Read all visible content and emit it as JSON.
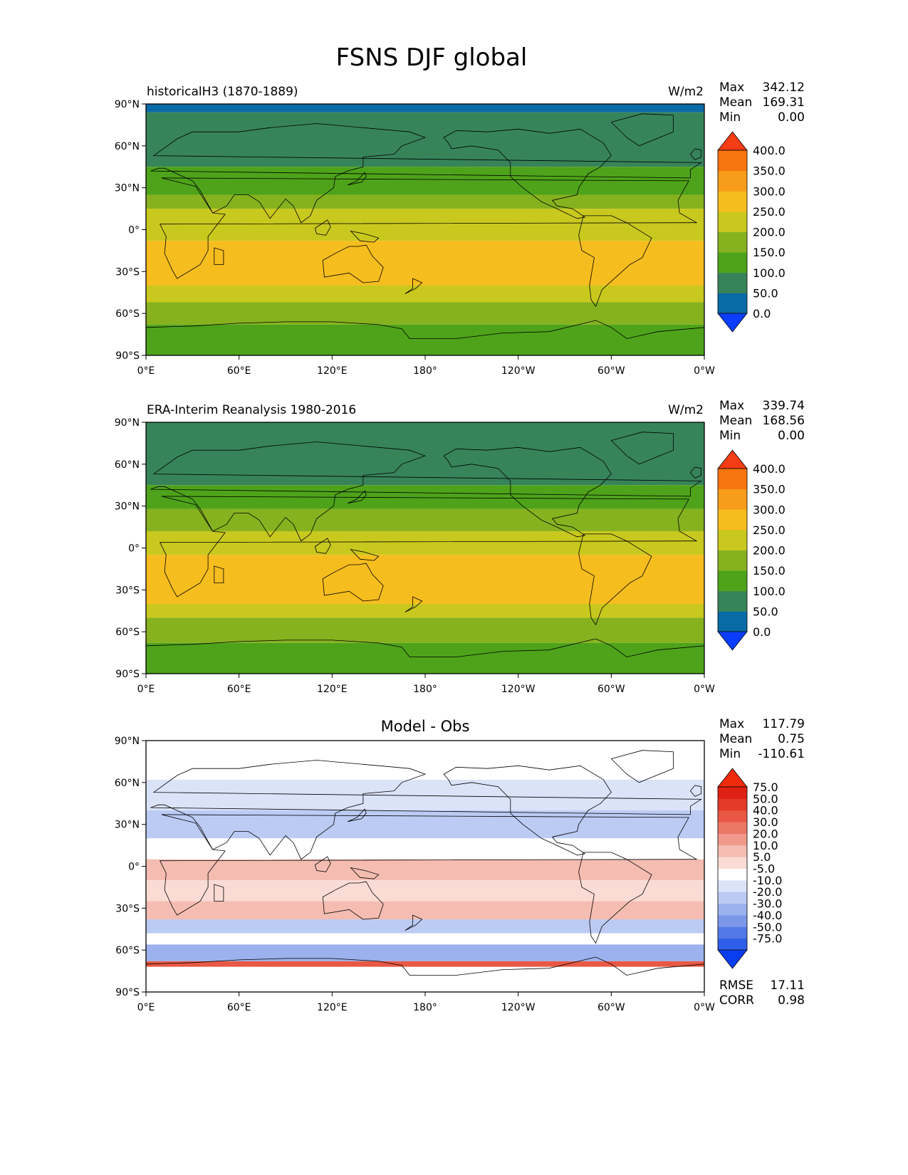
{
  "title": "FSNS DJF global",
  "colors": {
    "abs_levels": [
      "#0a3dff",
      "#0a6aa6",
      "#37845a",
      "#4ea31a",
      "#86b21f",
      "#c9c81e",
      "#f6bd1e",
      "#f79d1b",
      "#f7750f",
      "#f43c15"
    ],
    "diff_levels": [
      "#0b3df0",
      "#2f5ee8",
      "#5279e6",
      "#7a97ea",
      "#9cb2ee",
      "#bccbf4",
      "#dbe3f9",
      "#ffffff",
      "#fadcd5",
      "#f5bdb2",
      "#f19a8c",
      "#eb7865",
      "#e85844",
      "#e33a2a",
      "#de2114",
      "#f02a0c"
    ],
    "land_outline": "#000000",
    "frame": "#000000"
  },
  "chart_data": [
    {
      "type": "heatmap",
      "panel": "top",
      "left_title": "historicalH3 (1870-1889)",
      "center_title": "",
      "units": "W/m2",
      "stats": {
        "labels": [
          "Max",
          "Mean",
          "Min"
        ],
        "values": [
          "342.12",
          "169.31",
          "0.00"
        ]
      },
      "colorbar_ticks": [
        "400.0",
        "350.0",
        "300.0",
        "250.0",
        "200.0",
        "150.0",
        "100.0",
        "50.0",
        "0.0"
      ],
      "colorbar_extend": "both",
      "x_ticks": [
        "0°E",
        "60°E",
        "120°E",
        "180°",
        "120°W",
        "60°W",
        "0°W"
      ],
      "y_ticks": [
        "90°N",
        "60°N",
        "30°N",
        "0°",
        "30°S",
        "60°S",
        "90°S"
      ],
      "xlim": [
        0,
        360
      ],
      "ylim": [
        -90,
        90
      ],
      "lat_band_values": [
        {
          "lat": [
            84,
            90
          ],
          "value": 0
        },
        {
          "lat": [
            45,
            84
          ],
          "value": 75
        },
        {
          "lat": [
            25,
            45
          ],
          "value": 125
        },
        {
          "lat": [
            15,
            25
          ],
          "value": 175
        },
        {
          "lat": [
            -8,
            15
          ],
          "value": 225
        },
        {
          "lat": [
            -40,
            -8
          ],
          "value": 275
        },
        {
          "lat": [
            -52,
            -40
          ],
          "value": 225
        },
        {
          "lat": [
            -68,
            -52
          ],
          "value": 175
        },
        {
          "lat": [
            -90,
            -68
          ],
          "value": 125
        }
      ]
    },
    {
      "type": "heatmap",
      "panel": "middle",
      "left_title": "ERA-Interim Reanalysis 1980-2016",
      "center_title": "",
      "units": "W/m2",
      "stats": {
        "labels": [
          "Max",
          "Mean",
          "Min"
        ],
        "values": [
          "339.74",
          "168.56",
          "0.00"
        ]
      },
      "colorbar_ticks": [
        "400.0",
        "350.0",
        "300.0",
        "250.0",
        "200.0",
        "150.0",
        "100.0",
        "50.0",
        "0.0"
      ],
      "colorbar_extend": "both",
      "x_ticks": [
        "0°E",
        "60°E",
        "120°E",
        "180°",
        "120°W",
        "60°W",
        "0°W"
      ],
      "y_ticks": [
        "90°N",
        "60°N",
        "30°N",
        "0°",
        "30°S",
        "60°S",
        "90°S"
      ],
      "xlim": [
        0,
        360
      ],
      "ylim": [
        -90,
        90
      ],
      "lat_band_values": [
        {
          "lat": [
            45,
            90
          ],
          "value": 75
        },
        {
          "lat": [
            28,
            45
          ],
          "value": 125
        },
        {
          "lat": [
            12,
            28
          ],
          "value": 175
        },
        {
          "lat": [
            -5,
            12
          ],
          "value": 225
        },
        {
          "lat": [
            -40,
            -5
          ],
          "value": 275
        },
        {
          "lat": [
            -50,
            -40
          ],
          "value": 225
        },
        {
          "lat": [
            -68,
            -50
          ],
          "value": 175
        },
        {
          "lat": [
            -90,
            -68
          ],
          "value": 125
        }
      ]
    },
    {
      "type": "heatmap",
      "panel": "bottom",
      "left_title": "",
      "center_title": "Model - Obs",
      "units": "",
      "stats": {
        "labels": [
          "Max",
          "Mean",
          "Min"
        ],
        "values": [
          "117.79",
          "0.75",
          "-110.61"
        ]
      },
      "colorbar_ticks": [
        "75.0",
        "50.0",
        "40.0",
        "30.0",
        "20.0",
        "10.0",
        "5.0",
        "-5.0",
        "-10.0",
        "-20.0",
        "-30.0",
        "-40.0",
        "-50.0",
        "-75.0"
      ],
      "colorbar_extend": "both",
      "x_ticks": [
        "0°E",
        "60°E",
        "120°E",
        "180°",
        "120°W",
        "60°W",
        "0°W"
      ],
      "y_ticks": [
        "90°N",
        "60°N",
        "30°N",
        "0°",
        "30°S",
        "60°S",
        "90°S"
      ],
      "xlim": [
        0,
        360
      ],
      "ylim": [
        -90,
        90
      ],
      "extra_stats": {
        "labels": [
          "RMSE",
          "CORR"
        ],
        "values": [
          "17.11",
          "0.98"
        ]
      },
      "lat_band_values": [
        {
          "lat": [
            62,
            90
          ],
          "value": 0
        },
        {
          "lat": [
            40,
            62
          ],
          "value": -7
        },
        {
          "lat": [
            20,
            40
          ],
          "value": -15
        },
        {
          "lat": [
            5,
            20
          ],
          "value": 0
        },
        {
          "lat": [
            -10,
            5
          ],
          "value": 15
        },
        {
          "lat": [
            -25,
            -10
          ],
          "value": 8
        },
        {
          "lat": [
            -38,
            -25
          ],
          "value": 15
        },
        {
          "lat": [
            -48,
            -38
          ],
          "value": -15
        },
        {
          "lat": [
            -56,
            -48
          ],
          "value": 0
        },
        {
          "lat": [
            -68,
            -56
          ],
          "value": -25
        },
        {
          "lat": [
            -72,
            -68
          ],
          "value": 40
        },
        {
          "lat": [
            -90,
            -72
          ],
          "value": 0
        }
      ]
    }
  ]
}
